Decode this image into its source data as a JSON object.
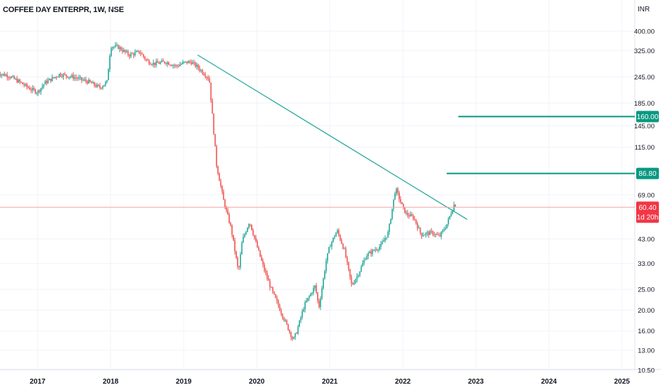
{
  "header": {
    "title": "COFFEE DAY ENTERPR, 1W, NSE",
    "currency": "INR"
  },
  "colors": {
    "up": "#26a69a",
    "down": "#ef5350",
    "trendline": "#26a69a",
    "level_line": "#089981",
    "price_line": "#f7a5a5",
    "price_tag": "#f23645",
    "level_tag": "#089981"
  },
  "chart_data": {
    "type": "line",
    "title": "COFFEE DAY ENTERPR, 1W, NSE",
    "scale": "log",
    "y_ticks": [
      "400.00",
      "325.00",
      "245.00",
      "185.00",
      "145.00",
      "115.00",
      "69.00",
      "43.00",
      "33.00",
      "25.00",
      "20.00",
      "16.00",
      "13.00",
      "10.50"
    ],
    "x_ticks": [
      "2017",
      "2018",
      "2019",
      "2020",
      "2021",
      "2022",
      "2023",
      "2024",
      "2025"
    ],
    "ylim": [
      10.5,
      470
    ],
    "series": [
      {
        "x": [
          2016.45,
          2016.6,
          2016.75,
          2016.9,
          2017.0,
          2017.1,
          2017.3,
          2017.5,
          2017.7,
          2017.85,
          2017.95,
          2018.0,
          2018.1,
          2018.25,
          2018.4,
          2018.5,
          2018.6,
          2018.75,
          2018.9,
          2019.0,
          2019.1,
          2019.2,
          2019.35,
          2019.45,
          2019.5,
          2019.55,
          2019.65,
          2019.75,
          2019.8,
          2019.9,
          2020.0,
          2020.1,
          2020.2,
          2020.35,
          2020.5,
          2020.55,
          2020.65,
          2020.8,
          2020.85,
          2020.95,
          2021.0,
          2021.1,
          2021.2,
          2021.3,
          2021.4,
          2021.5,
          2021.7,
          2021.8,
          2021.9,
          2022.0,
          2022.05,
          2022.15,
          2022.25,
          2022.4,
          2022.5,
          2022.6,
          2022.7,
          2022.73
        ],
        "values": [
          255,
          248,
          232,
          215,
          208,
          230,
          252,
          244,
          232,
          218,
          232,
          340,
          338,
          310,
          320,
          290,
          282,
          288,
          275,
          285,
          288,
          270,
          240,
          95,
          78,
          64,
          48,
          30,
          42,
          52,
          40,
          31,
          25,
          19,
          14.5,
          16,
          21,
          26,
          20.5,
          34,
          40,
          47,
          38,
          26,
          30,
          36,
          40,
          46,
          74,
          60,
          56,
          54,
          45,
          46,
          44,
          50,
          62,
          62
        ]
      }
    ],
    "annotations": {
      "trendline": [
        [
          2019.19,
          310
        ],
        [
          2022.88,
          53
        ]
      ],
      "resistance_levels": [
        {
          "label": "160.00",
          "value": 160,
          "from": 2022.76
        },
        {
          "label": "86.80",
          "value": 86.8,
          "from": 2022.6
        }
      ],
      "last_price": {
        "label": "60.40",
        "value": 60.4,
        "countdown": "1d 20h"
      }
    }
  }
}
